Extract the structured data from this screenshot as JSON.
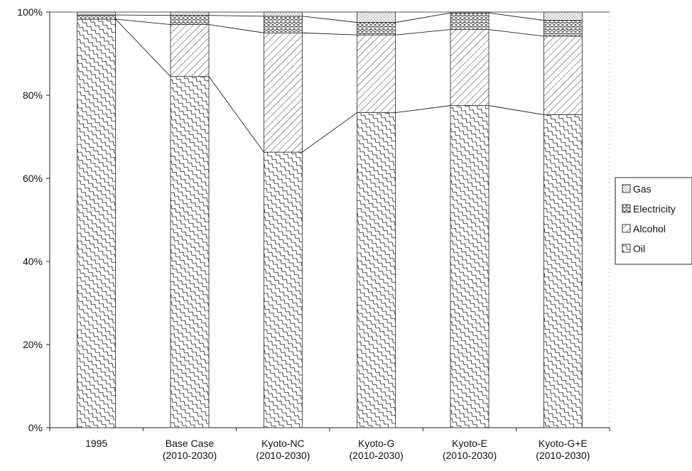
{
  "chart_data": {
    "type": "bar",
    "stacked": true,
    "percent": true,
    "categories": [
      [
        "1995"
      ],
      [
        "Base Case",
        "(2010-2030)"
      ],
      [
        "Kyoto-NC",
        "(2010-2030)"
      ],
      [
        "Kyoto-G",
        "(2010-2030)"
      ],
      [
        "Kyoto-E",
        "(2010-2030)"
      ],
      [
        "Kyoto-G+E",
        "(2010-2030)"
      ]
    ],
    "series": [
      {
        "name": "Oil",
        "pattern": "oil",
        "values": [
          98.3,
          84.5,
          66.3,
          75.8,
          77.5,
          75.3
        ]
      },
      {
        "name": "Alcohol",
        "pattern": "alcohol",
        "values": [
          0.0,
          12.5,
          28.7,
          18.7,
          18.3,
          18.9
        ]
      },
      {
        "name": "Electricity",
        "pattern": "electricity",
        "values": [
          1.0,
          2.2,
          4.0,
          3.0,
          4.0,
          3.8
        ]
      },
      {
        "name": "Gas",
        "pattern": "gas",
        "values": [
          0.7,
          0.8,
          1.0,
          2.5,
          0.2,
          2.0
        ]
      }
    ],
    "legend_order": [
      "Gas",
      "Electricity",
      "Alcohol",
      "Oil"
    ],
    "ylim": [
      0,
      100
    ],
    "yticks": [
      "0%",
      "20%",
      "40%",
      "60%",
      "80%",
      "100%"
    ],
    "legend_position": "right",
    "series_lines": true,
    "grid": false,
    "title": "",
    "xlabel": "",
    "ylabel": ""
  }
}
